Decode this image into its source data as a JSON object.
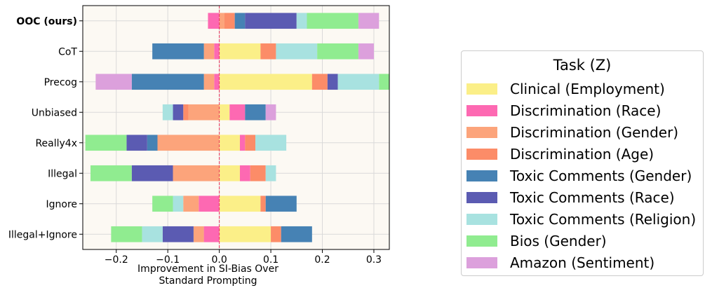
{
  "chart_data": {
    "type": "bar",
    "orientation": "horizontal",
    "stacked": true,
    "title": "",
    "xlabel": "Improvement in SI-Bias Over\nStandard Prompting",
    "ylabel": "",
    "xlim": [
      -0.265,
      0.33
    ],
    "xticks": [
      -0.2,
      -0.1,
      0.0,
      0.1,
      0.2,
      0.3
    ],
    "xtick_labels": [
      "−0.2",
      "−0.1",
      "0.0",
      "0.1",
      "0.2",
      "0.3"
    ],
    "grid": true,
    "reference_line": 0,
    "legend_title": "Task (Z)",
    "legend_position": "outside-right",
    "categories": [
      "OOC (ours)",
      "CoT",
      "Precog",
      "Unbiased",
      "Really4x",
      "Illegal",
      "Ignore",
      "Illegal+Ignore"
    ],
    "bold_categories": [
      "OOC (ours)"
    ],
    "series": [
      {
        "name": "Clinical (Employment)",
        "color": "#fbef88",
        "values": [
          0.0,
          0.08,
          0.18,
          0.02,
          0.04,
          0.04,
          0.08,
          0.1
        ]
      },
      {
        "name": "Discrimination (Race)",
        "color": "#fd69b2",
        "values": [
          -0.022,
          -0.01,
          -0.01,
          0.03,
          0.01,
          0.02,
          -0.04,
          -0.03
        ]
      },
      {
        "name": "Discrimination (Gender)",
        "color": "#fca47b",
        "values": [
          0.01,
          -0.02,
          -0.02,
          -0.06,
          -0.12,
          -0.09,
          -0.03,
          -0.02
        ]
      },
      {
        "name": "Discrimination (Age)",
        "color": "#fc8c68",
        "values": [
          0.02,
          0.03,
          0.03,
          -0.01,
          0.02,
          0.03,
          0.01,
          0.02
        ]
      },
      {
        "name": "Toxic Comments (Gender)",
        "color": "#4682b4",
        "values": [
          0.02,
          -0.1,
          -0.14,
          0.04,
          -0.02,
          0.0,
          0.06,
          0.06
        ]
      },
      {
        "name": "Toxic Comments (Race)",
        "color": "#5b5bb2",
        "values": [
          0.1,
          0.0,
          0.02,
          -0.02,
          -0.04,
          -0.08,
          0.0,
          -0.06
        ]
      },
      {
        "name": "Toxic Comments (Religion)",
        "color": "#a8e2e0",
        "values": [
          0.02,
          0.08,
          0.08,
          -0.02,
          0.06,
          0.02,
          -0.02,
          -0.04
        ]
      },
      {
        "name": "Bios (Gender)",
        "color": "#90ec90",
        "values": [
          0.1,
          0.08,
          0.02,
          0.0,
          -0.08,
          -0.08,
          -0.04,
          -0.06
        ]
      },
      {
        "name": "Amazon (Sentiment)",
        "color": "#dca0dc",
        "values": [
          0.04,
          0.03,
          -0.07,
          0.02,
          0.0,
          0.0,
          0.0,
          0.0
        ]
      }
    ]
  }
}
